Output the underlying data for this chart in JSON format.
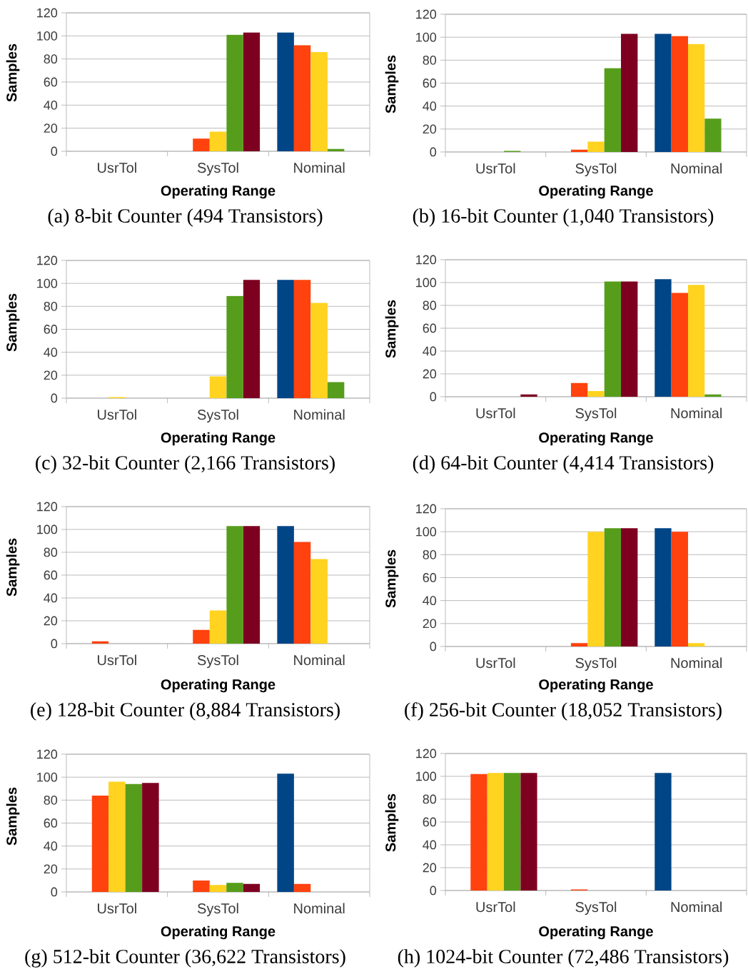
{
  "chart_data": [
    {
      "type": "bar",
      "title": "(a) 8-bit Counter (494 Transistors)",
      "xlabel": "Operating Range",
      "ylabel": "Samples",
      "categories": [
        "UsrTol",
        "SysTol",
        "Nominal"
      ],
      "series": [
        {
          "color": "#004586",
          "values": [
            0,
            0,
            103
          ]
        },
        {
          "color": "#ff420e",
          "values": [
            0,
            11,
            92
          ]
        },
        {
          "color": "#ffd320",
          "values": [
            0,
            17,
            86
          ]
        },
        {
          "color": "#579d1c",
          "values": [
            0,
            101,
            2
          ]
        },
        {
          "color": "#7e0021",
          "values": [
            0,
            103,
            0
          ]
        }
      ],
      "ylim": [
        0,
        120
      ],
      "yticks": [
        0,
        20,
        40,
        60,
        80,
        100,
        120
      ],
      "grid": "y"
    },
    {
      "type": "bar",
      "title": "(b) 16-bit Counter (1,040 Transistors)",
      "xlabel": "Operating Range",
      "ylabel": "Samples",
      "categories": [
        "UsrTol",
        "SysTol",
        "Nominal"
      ],
      "series": [
        {
          "color": "#004586",
          "values": [
            0,
            0,
            103
          ]
        },
        {
          "color": "#ff420e",
          "values": [
            0,
            2,
            101
          ]
        },
        {
          "color": "#ffd320",
          "values": [
            0,
            9,
            94
          ]
        },
        {
          "color": "#579d1c",
          "values": [
            1,
            73,
            29
          ]
        },
        {
          "color": "#7e0021",
          "values": [
            0,
            103,
            0
          ]
        }
      ],
      "ylim": [
        0,
        120
      ],
      "yticks": [
        0,
        20,
        40,
        60,
        80,
        100,
        120
      ],
      "grid": "y"
    },
    {
      "type": "bar",
      "title": "(c) 32-bit Counter (2,166 Transistors)",
      "xlabel": "Operating Range",
      "ylabel": "Samples",
      "categories": [
        "UsrTol",
        "SysTol",
        "Nominal"
      ],
      "series": [
        {
          "color": "#004586",
          "values": [
            0,
            0,
            103
          ]
        },
        {
          "color": "#ff420e",
          "values": [
            0,
            0,
            103
          ]
        },
        {
          "color": "#ffd320",
          "values": [
            1,
            19,
            83
          ]
        },
        {
          "color": "#579d1c",
          "values": [
            0,
            89,
            14
          ]
        },
        {
          "color": "#7e0021",
          "values": [
            0,
            103,
            0
          ]
        }
      ],
      "ylim": [
        0,
        120
      ],
      "yticks": [
        0,
        20,
        40,
        60,
        80,
        100,
        120
      ],
      "grid": "y"
    },
    {
      "type": "bar",
      "title": "(d) 64-bit Counter (4,414 Transistors)",
      "xlabel": "Operating Range",
      "ylabel": "Samples",
      "categories": [
        "UsrTol",
        "SysTol",
        "Nominal"
      ],
      "series": [
        {
          "color": "#004586",
          "values": [
            0,
            0,
            103
          ]
        },
        {
          "color": "#ff420e",
          "values": [
            0,
            12,
            91
          ]
        },
        {
          "color": "#ffd320",
          "values": [
            0,
            5,
            98
          ]
        },
        {
          "color": "#579d1c",
          "values": [
            0,
            101,
            2
          ]
        },
        {
          "color": "#7e0021",
          "values": [
            2,
            101,
            0
          ]
        }
      ],
      "ylim": [
        0,
        120
      ],
      "yticks": [
        0,
        20,
        40,
        60,
        80,
        100,
        120
      ],
      "grid": "y"
    },
    {
      "type": "bar",
      "title": "(e) 128-bit Counter (8,884 Transistors)",
      "xlabel": "Operating Range",
      "ylabel": "Samples",
      "categories": [
        "UsrTol",
        "SysTol",
        "Nominal"
      ],
      "series": [
        {
          "color": "#004586",
          "values": [
            0,
            0,
            103
          ]
        },
        {
          "color": "#ff420e",
          "values": [
            2,
            12,
            89
          ]
        },
        {
          "color": "#ffd320",
          "values": [
            0,
            29,
            74
          ]
        },
        {
          "color": "#579d1c",
          "values": [
            0,
            103,
            0
          ]
        },
        {
          "color": "#7e0021",
          "values": [
            0,
            103,
            0
          ]
        }
      ],
      "ylim": [
        0,
        120
      ],
      "yticks": [
        0,
        20,
        40,
        60,
        80,
        100,
        120
      ],
      "grid": "y"
    },
    {
      "type": "bar",
      "title": "(f) 256-bit Counter (18,052 Transistors)",
      "xlabel": "Operating Range",
      "ylabel": "Samples",
      "categories": [
        "UsrTol",
        "SysTol",
        "Nominal"
      ],
      "series": [
        {
          "color": "#004586",
          "values": [
            0,
            0,
            103
          ]
        },
        {
          "color": "#ff420e",
          "values": [
            0,
            3,
            100
          ]
        },
        {
          "color": "#ffd320",
          "values": [
            0,
            100,
            3
          ]
        },
        {
          "color": "#579d1c",
          "values": [
            0,
            103,
            0
          ]
        },
        {
          "color": "#7e0021",
          "values": [
            0,
            103,
            0
          ]
        }
      ],
      "ylim": [
        0,
        120
      ],
      "yticks": [
        0,
        20,
        40,
        60,
        80,
        100,
        120
      ],
      "grid": "y"
    },
    {
      "type": "bar",
      "title": "(g) 512-bit Counter (36,622 Transistors)",
      "xlabel": "Operating Range",
      "ylabel": "Samples",
      "categories": [
        "UsrTol",
        "SysTol",
        "Nominal"
      ],
      "series": [
        {
          "color": "#004586",
          "values": [
            0,
            0,
            103
          ]
        },
        {
          "color": "#ff420e",
          "values": [
            84,
            10,
            7
          ]
        },
        {
          "color": "#ffd320",
          "values": [
            96,
            6,
            0
          ]
        },
        {
          "color": "#579d1c",
          "values": [
            94,
            8,
            0
          ]
        },
        {
          "color": "#7e0021",
          "values": [
            95,
            7,
            0
          ]
        }
      ],
      "ylim": [
        0,
        120
      ],
      "yticks": [
        0,
        20,
        40,
        60,
        80,
        100,
        120
      ],
      "grid": "y"
    },
    {
      "type": "bar",
      "title": "(h) 1024-bit Counter (72,486 Transistors)",
      "xlabel": "Operating Range",
      "ylabel": "Samples",
      "categories": [
        "UsrTol",
        "SysTol",
        "Nominal"
      ],
      "series": [
        {
          "color": "#004586",
          "values": [
            0,
            0,
            103
          ]
        },
        {
          "color": "#ff420e",
          "values": [
            102,
            1,
            0
          ]
        },
        {
          "color": "#ffd320",
          "values": [
            103,
            0,
            0
          ]
        },
        {
          "color": "#579d1c",
          "values": [
            103,
            0,
            0
          ]
        },
        {
          "color": "#7e0021",
          "values": [
            103,
            0,
            0
          ]
        }
      ],
      "ylim": [
        0,
        120
      ],
      "yticks": [
        0,
        20,
        40,
        60,
        80,
        100,
        120
      ],
      "grid": "y"
    }
  ]
}
